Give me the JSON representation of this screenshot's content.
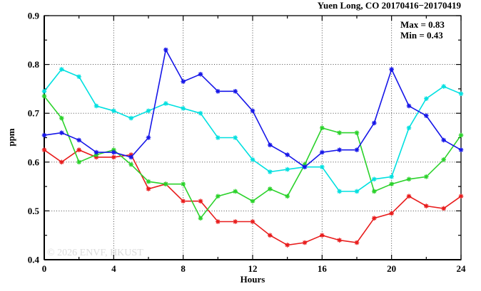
{
  "title": "Yuen Long, CO 20170416−20170419",
  "annotations": {
    "max_label": "Max = 0.83",
    "min_label": "Min = 0.43"
  },
  "watermark": "© 2026 ENVF, HKUST",
  "chart_data": {
    "type": "line",
    "title": "Yuen Long, CO 20170416−20170419",
    "xlabel": "Hours",
    "ylabel": "ppm",
    "xlim": [
      0,
      24
    ],
    "ylim": [
      0.4,
      0.9
    ],
    "grid": true,
    "legend": "none",
    "x_major_ticks": [
      0,
      4,
      8,
      12,
      16,
      20,
      24
    ],
    "x_minor_ticks": [
      2,
      6,
      10,
      14,
      18,
      22
    ],
    "y_major_ticks": [
      0.4,
      0.5,
      0.6,
      0.7,
      0.8,
      0.9
    ],
    "y_minor_ticks": [
      0.45,
      0.55,
      0.65,
      0.75,
      0.85
    ],
    "x_grid_at": [
      4,
      8,
      12,
      16,
      20
    ],
    "y_grid_at": [
      0.5,
      0.6,
      0.7,
      0.8
    ],
    "max": 0.83,
    "min": 0.43,
    "x": [
      0,
      1,
      2,
      3,
      4,
      5,
      6,
      7,
      8,
      9,
      10,
      11,
      12,
      13,
      14,
      15,
      16,
      17,
      18,
      19,
      20,
      21,
      22,
      23,
      24
    ],
    "series": [
      {
        "name": "red",
        "color": "#e81c1c",
        "values": [
          0.625,
          0.6,
          0.625,
          0.61,
          0.61,
          0.615,
          0.545,
          0.555,
          0.52,
          0.52,
          0.478,
          0.478,
          0.478,
          0.45,
          0.43,
          0.435,
          0.45,
          0.44,
          0.435,
          0.485,
          0.495,
          0.53,
          0.51,
          0.505,
          0.53
        ]
      },
      {
        "name": "green",
        "color": "#2bd22b",
        "values": [
          0.735,
          0.69,
          0.6,
          0.615,
          0.625,
          0.595,
          0.56,
          0.555,
          0.555,
          0.485,
          0.53,
          0.54,
          0.52,
          0.545,
          0.53,
          0.595,
          0.67,
          0.66,
          0.66,
          0.54,
          0.555,
          0.565,
          0.57,
          0.605,
          0.655
        ]
      },
      {
        "name": "cyan",
        "color": "#00e0e0",
        "values": [
          0.745,
          0.79,
          0.775,
          0.715,
          0.705,
          0.69,
          0.705,
          0.72,
          0.71,
          0.7,
          0.65,
          0.65,
          0.605,
          0.58,
          0.585,
          0.59,
          0.59,
          0.54,
          0.54,
          0.565,
          0.57,
          0.67,
          0.73,
          0.755,
          0.74
        ]
      },
      {
        "name": "blue",
        "color": "#1616e8",
        "values": [
          0.655,
          0.66,
          0.645,
          0.62,
          0.62,
          0.61,
          0.65,
          0.83,
          0.765,
          0.78,
          0.745,
          0.745,
          0.705,
          0.635,
          0.615,
          0.59,
          0.62,
          0.625,
          0.625,
          0.68,
          0.79,
          0.715,
          0.695,
          0.645,
          0.625
        ]
      }
    ]
  }
}
